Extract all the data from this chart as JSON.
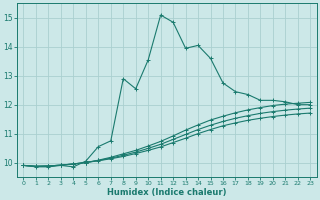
{
  "xlabel": "Humidex (Indice chaleur)",
  "xlim": [
    -0.5,
    23.5
  ],
  "ylim": [
    9.5,
    15.5
  ],
  "yticks": [
    10,
    11,
    12,
    13,
    14,
    15
  ],
  "xticks": [
    0,
    1,
    2,
    3,
    4,
    5,
    6,
    7,
    8,
    9,
    10,
    11,
    12,
    13,
    14,
    15,
    16,
    17,
    18,
    19,
    20,
    21,
    22,
    23
  ],
  "bg_color": "#cce8e8",
  "grid_color": "#aad0d0",
  "line_color": "#1a7a6e",
  "lines": [
    {
      "x": [
        0,
        1,
        2,
        3,
        4,
        5,
        6,
        7,
        8,
        9,
        10,
        11,
        12,
        13,
        14,
        15,
        16,
        17,
        18,
        19,
        20,
        21,
        22,
        23
      ],
      "y": [
        9.9,
        9.85,
        9.85,
        9.9,
        9.85,
        10.05,
        10.55,
        10.75,
        12.9,
        12.55,
        13.55,
        15.1,
        14.85,
        13.95,
        14.05,
        13.6,
        12.75,
        12.45,
        12.35,
        12.15,
        12.15,
        12.1,
        12.0,
        12.0
      ]
    },
    {
      "x": [
        0,
        1,
        2,
        3,
        4,
        5,
        6,
        7,
        8,
        9,
        10,
        11,
        12,
        13,
        14,
        15,
        16,
        17,
        18,
        19,
        20,
        21,
        22,
        23
      ],
      "y": [
        9.9,
        9.87,
        9.88,
        9.91,
        9.95,
        10.0,
        10.08,
        10.18,
        10.3,
        10.42,
        10.57,
        10.73,
        10.92,
        11.12,
        11.3,
        11.47,
        11.6,
        11.72,
        11.82,
        11.9,
        11.97,
        12.02,
        12.05,
        12.08
      ]
    },
    {
      "x": [
        0,
        1,
        2,
        3,
        4,
        5,
        6,
        7,
        8,
        9,
        10,
        11,
        12,
        13,
        14,
        15,
        16,
        17,
        18,
        19,
        20,
        21,
        22,
        23
      ],
      "y": [
        9.9,
        9.87,
        9.88,
        9.91,
        9.95,
        10.0,
        10.07,
        10.15,
        10.25,
        10.36,
        10.49,
        10.63,
        10.8,
        10.97,
        11.14,
        11.29,
        11.42,
        11.53,
        11.62,
        11.7,
        11.76,
        11.81,
        11.85,
        11.88
      ]
    },
    {
      "x": [
        0,
        1,
        2,
        3,
        4,
        5,
        6,
        7,
        8,
        9,
        10,
        11,
        12,
        13,
        14,
        15,
        16,
        17,
        18,
        19,
        20,
        21,
        22,
        23
      ],
      "y": [
        9.9,
        9.87,
        9.88,
        9.91,
        9.95,
        10.0,
        10.06,
        10.13,
        10.21,
        10.31,
        10.42,
        10.54,
        10.69,
        10.84,
        11.0,
        11.14,
        11.27,
        11.37,
        11.46,
        11.53,
        11.59,
        11.64,
        11.68,
        11.71
      ]
    }
  ]
}
